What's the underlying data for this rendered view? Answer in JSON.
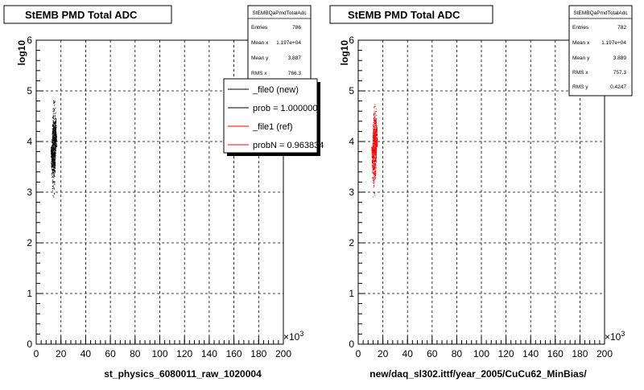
{
  "chart_data": [
    {
      "type": "scatter",
      "title": "StEMB PMD Total ADC",
      "xlabel": "st_physics_6080011_raw_1020004",
      "ylabel": "log10",
      "x_multiplier": "×10",
      "x_exponent": "3",
      "xlim": [
        0,
        200
      ],
      "ylim": [
        0,
        6
      ],
      "x_ticks": [
        "0",
        "20",
        "40",
        "60",
        "80",
        "100",
        "120",
        "140",
        "160",
        "180",
        "200"
      ],
      "y_ticks": [
        "0",
        "1",
        "2",
        "3",
        "4",
        "5",
        "6"
      ],
      "grid": true,
      "marker_color": "#000000",
      "cluster": {
        "x_range": [
          12,
          16
        ],
        "y_range": [
          2.85,
          4.85
        ],
        "y_center": 3.9,
        "n_points": 786
      },
      "stats": {
        "title": "StEMBQaPmdTotalAdc",
        "rows": [
          {
            "label": "Entries",
            "value": "786"
          },
          {
            "label": "Mean x",
            "value": "1.197e+04"
          },
          {
            "label": "Mean y",
            "value": "3.887"
          },
          {
            "label": "RMS x",
            "value": "766.3"
          }
        ]
      },
      "legend": {
        "entries": [
          {
            "label": "_file0 (new)",
            "color": "#000000"
          },
          {
            "label": "prob = 1.000000",
            "color": "#000000"
          },
          {
            "label": "_file1 (ref)",
            "color": "#ff0000"
          },
          {
            "label": "probN = 0.963834",
            "color": "#ff0000"
          }
        ]
      }
    },
    {
      "type": "scatter",
      "title": "StEMB PMD Total ADC",
      "xlabel": "new/daq_sl302.ittf/year_2005/CuCu62_MinBias/",
      "ylabel": "log10",
      "x_multiplier": "×10",
      "x_exponent": "3",
      "xlim": [
        0,
        200
      ],
      "ylim": [
        0,
        6
      ],
      "x_ticks": [
        "0",
        "20",
        "40",
        "60",
        "80",
        "100",
        "120",
        "140",
        "160",
        "180",
        "200"
      ],
      "y_ticks": [
        "0",
        "1",
        "2",
        "3",
        "4",
        "5",
        "6"
      ],
      "grid": true,
      "marker_color": "#ff0000",
      "cluster": {
        "x_range": [
          11,
          15
        ],
        "y_range": [
          2.85,
          4.85
        ],
        "y_center": 3.9,
        "n_points": 782
      },
      "stats": {
        "title": "StEMBQaPmdTotalAdc",
        "rows": [
          {
            "label": "Entries",
            "value": "782"
          },
          {
            "label": "Mean x",
            "value": "1.197e+04"
          },
          {
            "label": "Mean y",
            "value": "3.889"
          },
          {
            "label": "RMS x",
            "value": "757.3"
          },
          {
            "label": "RMS y",
            "value": "0.4247"
          }
        ]
      }
    }
  ]
}
